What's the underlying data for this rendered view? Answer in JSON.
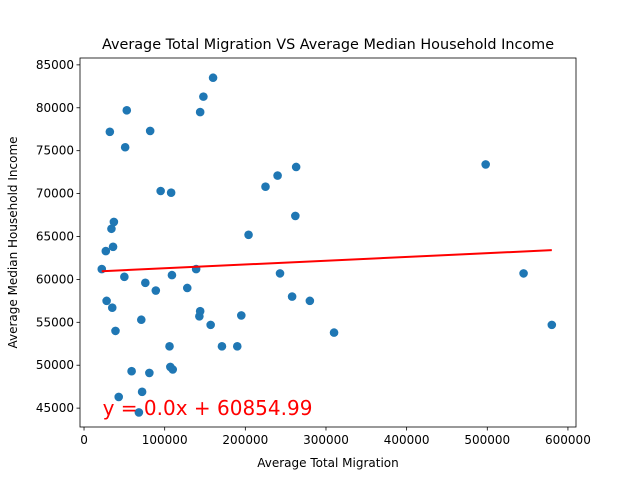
{
  "chart_data": {
    "type": "scatter",
    "title": "Average Total Migration VS Average Median Household Income",
    "xlabel": "Average Total Migration",
    "ylabel": "Average Median Household Income",
    "xlim": [
      -5000,
      610000
    ],
    "ylim": [
      42800,
      85800
    ],
    "xticks": [
      0,
      100000,
      200000,
      300000,
      400000,
      500000,
      600000
    ],
    "yticks": [
      45000,
      50000,
      55000,
      60000,
      65000,
      70000,
      75000,
      80000,
      85000
    ],
    "grid": false,
    "series": [
      {
        "color": "#1f77b4",
        "points": [
          [
            22000,
            61200
          ],
          [
            27000,
            63300
          ],
          [
            28000,
            57500
          ],
          [
            32000,
            77200
          ],
          [
            34000,
            65900
          ],
          [
            35000,
            56700
          ],
          [
            36000,
            63800
          ],
          [
            37000,
            66700
          ],
          [
            39000,
            54000
          ],
          [
            43000,
            46300
          ],
          [
            50000,
            60300
          ],
          [
            51000,
            75400
          ],
          [
            53000,
            79700
          ],
          [
            59000,
            49300
          ],
          [
            68000,
            44500
          ],
          [
            71000,
            55300
          ],
          [
            72000,
            46900
          ],
          [
            76000,
            59600
          ],
          [
            81000,
            49100
          ],
          [
            82000,
            77300
          ],
          [
            89000,
            58700
          ],
          [
            95000,
            70300
          ],
          [
            106000,
            52200
          ],
          [
            107000,
            49800
          ],
          [
            108000,
            70100
          ],
          [
            109000,
            60500
          ],
          [
            110000,
            49500
          ],
          [
            128000,
            59000
          ],
          [
            139000,
            61200
          ],
          [
            143000,
            55700
          ],
          [
            144000,
            56300
          ],
          [
            144000,
            79500
          ],
          [
            148000,
            81300
          ],
          [
            157000,
            54700
          ],
          [
            160000,
            83500
          ],
          [
            171000,
            52200
          ],
          [
            190000,
            52200
          ],
          [
            195000,
            55800
          ],
          [
            204000,
            65200
          ],
          [
            225000,
            70800
          ],
          [
            240000,
            72100
          ],
          [
            243000,
            60700
          ],
          [
            258000,
            58000
          ],
          [
            262000,
            67400
          ],
          [
            263000,
            73100
          ],
          [
            280000,
            57500
          ],
          [
            310000,
            53800
          ],
          [
            498000,
            73400
          ],
          [
            545000,
            60700
          ],
          [
            580000,
            54700
          ]
        ]
      }
    ],
    "regression": {
      "slope": 0.0044,
      "intercept": 60854.99,
      "x_range": [
        22000,
        580000
      ],
      "color": "#ff0000",
      "equation_label": "y = 0.0x + 60854.99",
      "label_anchor": [
        23000,
        44800
      ]
    }
  }
}
